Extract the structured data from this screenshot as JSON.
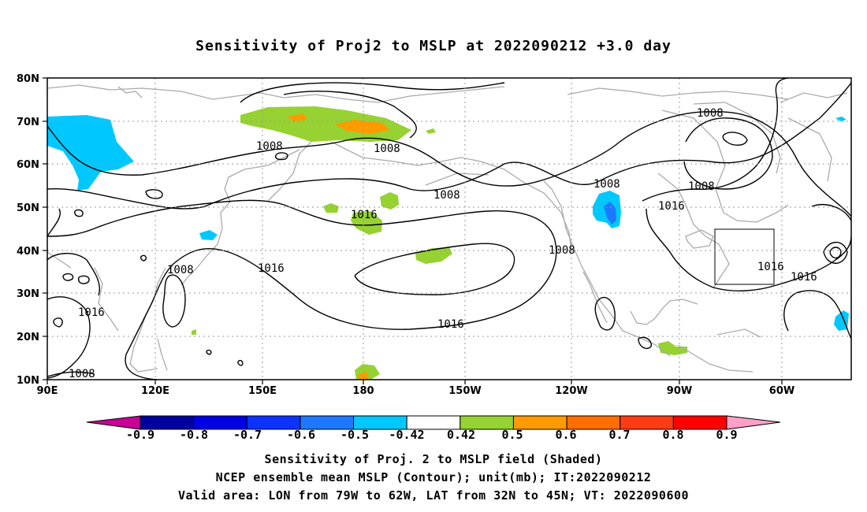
{
  "title": "Sensitivity of Proj2 to MSLP at 2022090212 +3.0 day",
  "map": {
    "lat_labels": [
      "80N",
      "70N",
      "60N",
      "50N",
      "40N",
      "30N",
      "20N",
      "10N"
    ],
    "lon_labels": [
      "90E",
      "120E",
      "150E",
      "180",
      "150W",
      "120W",
      "90W",
      "60W"
    ],
    "contour_labels": [
      {
        "text": "1008"
      },
      {
        "text": "1008"
      },
      {
        "text": "1008"
      },
      {
        "text": "1008"
      },
      {
        "text": "1008"
      },
      {
        "text": "1008"
      },
      {
        "text": "1008"
      },
      {
        "text": "1008"
      },
      {
        "text": "1008"
      },
      {
        "text": "1016"
      },
      {
        "text": "1016"
      },
      {
        "text": "1016"
      },
      {
        "text": "1016"
      },
      {
        "text": "1016"
      },
      {
        "text": "1016"
      },
      {
        "text": "1016"
      }
    ],
    "colors": {
      "contour": "#000000",
      "coast": "#aaaaaa",
      "shade_cyan": "#00c8ff",
      "shade_blue": "#1e78ff",
      "shade_green": "#96d232",
      "shade_orange": "#ff9b00"
    }
  },
  "colorbar": {
    "labels": [
      "-0.9",
      "-0.8",
      "-0.7",
      "-0.6",
      "-0.5",
      "-0.42",
      "0.42",
      "0.5",
      "0.6",
      "0.7",
      "0.8",
      "0.9"
    ],
    "colors": [
      "#0000a0",
      "#0000e6",
      "#0c32ff",
      "#1e78ff",
      "#00c8ff",
      "#ffffff",
      "#96d232",
      "#ff9b00",
      "#ff6e00",
      "#ff3c14",
      "#ff0000"
    ],
    "low_end_color": "#c80096",
    "high_end_color": "#ffa0c8"
  },
  "captions": {
    "line1": "Sensitivity of Proj. 2 to MSLP field (Shaded)",
    "line2": "NCEP ensemble mean MSLP (Contour); unit(mb); IT:2022090212",
    "line3": "Valid area: LON from 79W to 62W, LAT from 32N to 45N; VT: 2022090600"
  }
}
